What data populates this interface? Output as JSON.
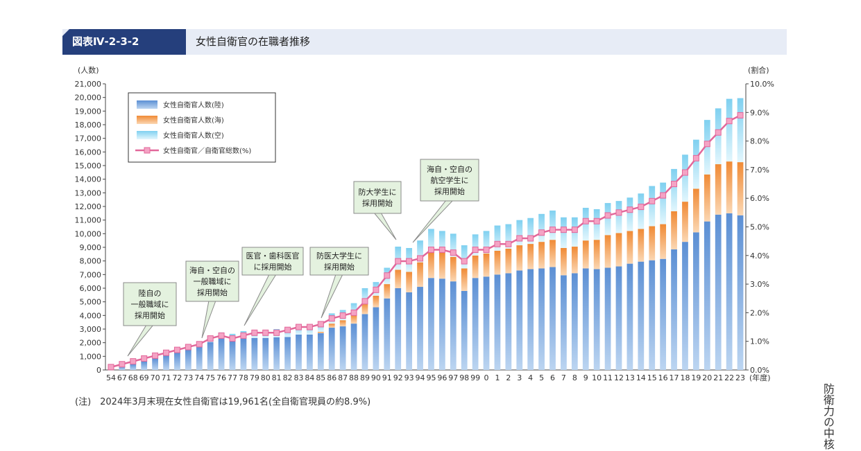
{
  "header": {
    "tag": "図表Ⅳ-2-3-2",
    "title": "女性自衛官の在職者推移"
  },
  "note": "(注)　2024年3月末現在女性自衛官は19,961名(全自衛官現員の約8.9%)",
  "side_text": "防衛力の中核",
  "colors": {
    "header_bg": "#253f7c",
    "header_band": "#e7ecf6",
    "gsdf": "#6b9bd8",
    "msdf": "#f29b4a",
    "asdf": "#8fd8f2",
    "ratio_line": "#e2679a",
    "callout_bg": "#e4f2df"
  },
  "chart_data": {
    "type": "bar",
    "stacked": true,
    "ylabel": "(人数)",
    "ylabel_right": "(割合)",
    "xlabel": "(年度)",
    "ylim": [
      0,
      21000
    ],
    "ylim_right": [
      0,
      10
    ],
    "yticks": [
      "0",
      "1,000",
      "2,000",
      "3,000",
      "4,000",
      "5,000",
      "6,000",
      "7,000",
      "8,000",
      "9,000",
      "10,000",
      "11,000",
      "12,000",
      "13,000",
      "14,000",
      "15,000",
      "16,000",
      "17,000",
      "18,000",
      "19,000",
      "20,000",
      "21,000"
    ],
    "yticks_right": [
      "0.0%",
      "1.0%",
      "2.0%",
      "3.0%",
      "4.0%",
      "5.0%",
      "6.0%",
      "7.0%",
      "8.0%",
      "9.0%",
      "10.0%"
    ],
    "categories": [
      "54",
      "67",
      "68",
      "69",
      "70",
      "71",
      "72",
      "73",
      "74",
      "75",
      "76",
      "77",
      "78",
      "79",
      "80",
      "81",
      "82",
      "83",
      "84",
      "85",
      "86",
      "87",
      "88",
      "89",
      "90",
      "91",
      "92",
      "93",
      "94",
      "95",
      "96",
      "97",
      "98",
      "99",
      "0",
      "1",
      "2",
      "3",
      "4",
      "5",
      "6",
      "7",
      "8",
      "9",
      "10",
      "11",
      "12",
      "13",
      "14",
      "15",
      "16",
      "17",
      "18",
      "19",
      "20",
      "21",
      "22",
      "23"
    ],
    "series": [
      {
        "name": "女性自衛官人数(陸)",
        "values": [
          180,
          250,
          420,
          620,
          850,
          1050,
          1250,
          1480,
          1700,
          2050,
          2300,
          2150,
          2300,
          2350,
          2350,
          2400,
          2420,
          2600,
          2600,
          2700,
          3100,
          3200,
          3400,
          4100,
          4600,
          5250,
          6000,
          5700,
          6100,
          6750,
          6700,
          6500,
          5800,
          6750,
          6850,
          7000,
          7100,
          7300,
          7400,
          7450,
          7550,
          6950,
          7100,
          7450,
          7400,
          7500,
          7600,
          7800,
          7950,
          8050,
          8150,
          8850,
          9400,
          10100,
          10900,
          11400,
          11500,
          11350
        ]
      },
      {
        "name": "女性自衛官人数(海)",
        "values": [
          0,
          0,
          0,
          0,
          0,
          0,
          0,
          0,
          0,
          0,
          0,
          0,
          0,
          0,
          0,
          0,
          0,
          0,
          0,
          100,
          300,
          450,
          650,
          800,
          850,
          1050,
          1350,
          1500,
          1800,
          1900,
          1900,
          1800,
          1650,
          1650,
          1700,
          1750,
          1800,
          1850,
          1850,
          1950,
          2000,
          2000,
          1950,
          2050,
          2150,
          2400,
          2450,
          2400,
          2400,
          2500,
          2550,
          2800,
          2950,
          3200,
          3450,
          3700,
          3800,
          3900
        ]
      },
      {
        "name": "女性自衛官人数(空)",
        "values": [
          0,
          0,
          0,
          0,
          0,
          0,
          0,
          0,
          0,
          450,
          450,
          500,
          550,
          550,
          600,
          600,
          700,
          700,
          750,
          750,
          750,
          750,
          850,
          1100,
          1000,
          1200,
          1700,
          1750,
          1600,
          1700,
          1600,
          1700,
          1700,
          1550,
          1650,
          1850,
          1800,
          1850,
          1900,
          2050,
          2150,
          2250,
          2150,
          2400,
          2250,
          2350,
          2350,
          2450,
          2600,
          2950,
          3050,
          3100,
          3450,
          3600,
          4000,
          4100,
          4600,
          4700
        ]
      }
    ],
    "ratio_series": {
      "name": "女性自衛官／自衛官総数(%)",
      "values": [
        0.1,
        0.2,
        0.3,
        0.4,
        0.5,
        0.6,
        0.7,
        0.8,
        0.9,
        1.1,
        1.2,
        1.1,
        1.2,
        1.3,
        1.3,
        1.3,
        1.4,
        1.5,
        1.5,
        1.6,
        1.8,
        1.9,
        2.0,
        2.4,
        2.8,
        3.3,
        3.8,
        3.8,
        3.9,
        4.2,
        4.2,
        4.1,
        3.8,
        4.2,
        4.2,
        4.4,
        4.4,
        4.6,
        4.6,
        4.8,
        4.9,
        4.9,
        4.9,
        5.2,
        5.2,
        5.4,
        5.5,
        5.6,
        5.7,
        5.9,
        6.1,
        6.5,
        6.9,
        7.4,
        7.9,
        8.3,
        8.7,
        8.9
      ]
    },
    "legend": {
      "placement": "top-left",
      "entries": [
        "女性自衛官人数(陸)",
        "女性自衛官人数(海)",
        "女性自衛官人数(空)",
        "女性自衛官／自衛官総数(%)"
      ]
    },
    "annotations": [
      {
        "lines": [
          "陸自の",
          "一般職域に",
          "採用開始"
        ],
        "category": "67"
      },
      {
        "lines": [
          "海自・空自の",
          "一般職域に",
          "採用開始"
        ],
        "category": "74"
      },
      {
        "lines": [
          "医官・歯科医官",
          "に採用開始"
        ],
        "category": "78"
      },
      {
        "lines": [
          "防医大学生に",
          "採用開始"
        ],
        "category": "85"
      },
      {
        "lines": [
          "防大学生に",
          "採用開始"
        ],
        "category": "92"
      },
      {
        "lines": [
          "海自・空自の",
          "航空学生に",
          "採用開始"
        ],
        "category": "93"
      }
    ]
  }
}
